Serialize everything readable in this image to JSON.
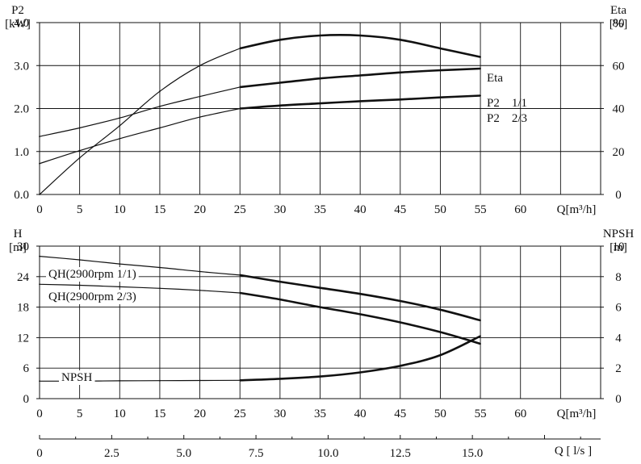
{
  "chart_data": [
    {
      "type": "line",
      "id": "top",
      "left_axis": {
        "label_line1": "P2",
        "label_line2": "[kW]",
        "ylim": [
          0,
          4.0
        ],
        "ticks": [
          "0.0",
          "1.0",
          "2.0",
          "3.0",
          "4.0"
        ]
      },
      "right_axis": {
        "label_line1": "Eta",
        "label_line2": "[%]",
        "ylim": [
          0,
          80
        ],
        "ticks": [
          "0",
          "20",
          "40",
          "60",
          "80"
        ]
      },
      "x_axis": {
        "label": "Q[m³/h]",
        "xlim": [
          0,
          70
        ],
        "ticks": [
          "0",
          "5",
          "10",
          "15",
          "20",
          "25",
          "30",
          "35",
          "40",
          "45",
          "50",
          "55",
          "60"
        ]
      },
      "grid": true,
      "series": [
        {
          "name": "Eta",
          "axis": "right",
          "x": [
            0,
            5,
            10,
            15,
            20,
            25,
            30,
            35,
            40,
            45,
            50,
            55
          ],
          "y": [
            0,
            17,
            32,
            48,
            60,
            68,
            72,
            74,
            74,
            72,
            68,
            64
          ]
        },
        {
          "name": "P2 1/1",
          "axis": "left",
          "x": [
            0,
            5,
            10,
            15,
            20,
            25,
            30,
            35,
            40,
            45,
            50,
            55
          ],
          "y": [
            1.35,
            1.55,
            1.78,
            2.05,
            2.28,
            2.5,
            2.6,
            2.7,
            2.77,
            2.84,
            2.89,
            2.93
          ]
        },
        {
          "name": "P2 2/3",
          "axis": "left",
          "x": [
            0,
            5,
            10,
            15,
            20,
            25,
            30,
            35,
            40,
            45,
            50,
            55
          ],
          "y": [
            0.72,
            1.02,
            1.3,
            1.55,
            1.8,
            2.0,
            2.07,
            2.12,
            2.17,
            2.21,
            2.26,
            2.3
          ]
        }
      ],
      "labels": {
        "eta": "Eta",
        "p2_full": "P2    1/1",
        "p2_two_thirds": "P2    2/3"
      }
    },
    {
      "type": "line",
      "id": "bottom",
      "left_axis": {
        "label_line1": "H",
        "label_line2": "[m]",
        "ylim": [
          0,
          30
        ],
        "ticks": [
          "0",
          "6",
          "12",
          "18",
          "24",
          "30"
        ]
      },
      "right_axis": {
        "label_line1": "NPSH",
        "label_line2": "[m]",
        "ylim": [
          0,
          10
        ],
        "ticks": [
          "0",
          "2",
          "4",
          "6",
          "8",
          "10"
        ]
      },
      "x_axis": {
        "label": "Q[m³/h]",
        "xlim": [
          0,
          70
        ],
        "ticks": [
          "0",
          "5",
          "10",
          "15",
          "20",
          "25",
          "30",
          "35",
          "40",
          "45",
          "50",
          "55",
          "60"
        ]
      },
      "grid": true,
      "series": [
        {
          "name": "QH(2900rpm 1/1)",
          "axis": "left",
          "x": [
            0,
            5,
            10,
            15,
            20,
            25,
            30,
            35,
            40,
            45,
            50,
            55
          ],
          "y": [
            28,
            27.3,
            26.5,
            25.8,
            25,
            24.3,
            23,
            21.8,
            20.6,
            19.2,
            17.5,
            15.4
          ]
        },
        {
          "name": "QH(2900rpm 2/3)",
          "axis": "left",
          "x": [
            0,
            5,
            10,
            15,
            20,
            25,
            30,
            35,
            40,
            45,
            50,
            55
          ],
          "y": [
            22.5,
            22.3,
            22,
            21.7,
            21.3,
            20.8,
            19.5,
            18,
            16.6,
            15,
            13.1,
            10.8
          ]
        },
        {
          "name": "NPSH",
          "axis": "right",
          "x": [
            0,
            5,
            10,
            15,
            20,
            25,
            30,
            35,
            40,
            45,
            50,
            55
          ],
          "y": [
            1.15,
            1.15,
            1.17,
            1.18,
            1.19,
            1.2,
            1.3,
            1.45,
            1.72,
            2.15,
            2.85,
            4.1
          ]
        }
      ]
    }
  ],
  "secondary_axis": {
    "label": "Q [ l/s ]",
    "xlim": [
      0,
      19.4444
    ],
    "ticks": [
      "0",
      "2.5",
      "5.0",
      "7.5",
      "10.0",
      "12.5",
      "15.0"
    ]
  }
}
